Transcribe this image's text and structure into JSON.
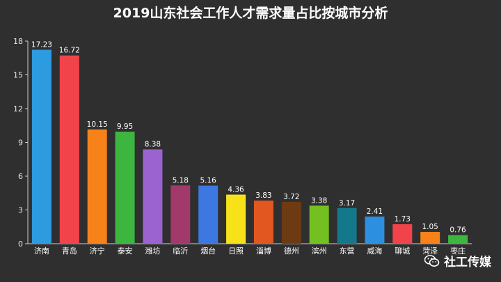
{
  "chart_data": {
    "type": "bar",
    "title": "2019山东社会工作人才需求量占比按城市分析",
    "categories": [
      "济南",
      "青岛",
      "济宁",
      "泰安",
      "潍坊",
      "临沂",
      "烟台",
      "日照",
      "淄博",
      "德州",
      "滨州",
      "东营",
      "威海",
      "聊城",
      "菏泽",
      "枣庄"
    ],
    "values": [
      17.23,
      16.72,
      10.15,
      9.95,
      8.38,
      5.18,
      5.16,
      4.36,
      3.83,
      3.72,
      3.38,
      3.17,
      2.41,
      1.73,
      1.05,
      0.76
    ],
    "value_labels": [
      "17.23",
      "16.72",
      "10.15",
      "9.95",
      "8.38",
      "5.18",
      "5.16",
      "4.36",
      "3.83",
      "3.72",
      "3.38",
      "3.17",
      "2.41",
      "1.73",
      "1.05",
      "0.76"
    ],
    "colors": [
      "#2d9be0",
      "#f2434a",
      "#f7821a",
      "#3db63f",
      "#9b63cf",
      "#a13a6a",
      "#3d78e0",
      "#f7e21a",
      "#e2561f",
      "#6e3a12",
      "#74c020",
      "#13798a",
      "#2d8fe0",
      "#f2434a",
      "#f7821a",
      "#3db63f"
    ],
    "yticks": [
      "0",
      "3",
      "6",
      "9",
      "12",
      "15",
      "18"
    ],
    "ylim": [
      0,
      18
    ],
    "grid": false,
    "legend": "none"
  },
  "watermark": {
    "text": "社工传媒",
    "icon": "wechat-icon"
  }
}
